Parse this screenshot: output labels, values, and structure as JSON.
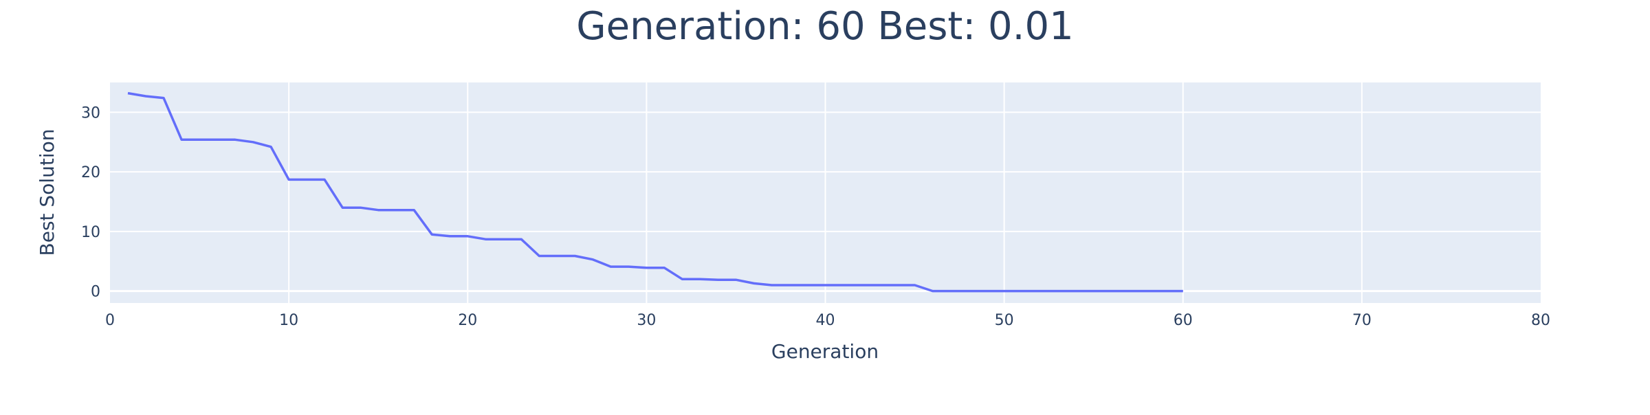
{
  "chart_data": {
    "type": "line",
    "title": "Generation: 60 Best: 0.01",
    "xlabel": "Generation",
    "ylabel": "Best Solution",
    "xlim": [
      0,
      80
    ],
    "ylim": [
      -2,
      35
    ],
    "x_ticks": [
      0,
      10,
      20,
      30,
      40,
      50,
      60,
      70,
      80
    ],
    "y_ticks": [
      0,
      10,
      20,
      30
    ],
    "grid": true,
    "colors": {
      "plot_background": "#e5ecf6",
      "grid": "#ffffff",
      "line": "#636efa",
      "text": "#2a3f5f"
    },
    "series": [
      {
        "x": [
          1,
          2,
          3,
          4,
          5,
          6,
          7,
          8,
          9,
          10,
          11,
          12,
          13,
          14,
          15,
          16,
          17,
          18,
          19,
          20,
          21,
          22,
          23,
          24,
          25,
          26,
          27,
          28,
          29,
          30,
          31,
          32,
          33,
          34,
          35,
          36,
          37,
          38,
          39,
          40,
          41,
          42,
          43,
          44,
          45,
          46,
          47,
          48,
          49,
          50,
          51,
          52,
          53,
          54,
          55,
          56,
          57,
          58,
          59,
          60
        ],
        "values": [
          33.2,
          32.7,
          32.4,
          25.4,
          25.4,
          25.4,
          25.4,
          25.0,
          24.2,
          18.7,
          18.7,
          18.7,
          14.0,
          14.0,
          13.6,
          13.6,
          13.6,
          9.5,
          9.2,
          9.2,
          8.7,
          8.7,
          8.7,
          5.9,
          5.9,
          5.9,
          5.3,
          4.1,
          4.1,
          3.9,
          3.9,
          2.0,
          2.0,
          1.9,
          1.9,
          1.3,
          1.0,
          1.0,
          1.0,
          1.0,
          1.0,
          1.0,
          1.0,
          1.0,
          1.0,
          0.01,
          0.01,
          0.01,
          0.01,
          0.01,
          0.01,
          0.01,
          0.01,
          0.01,
          0.01,
          0.01,
          0.01,
          0.01,
          0.01,
          0.01
        ]
      }
    ]
  }
}
